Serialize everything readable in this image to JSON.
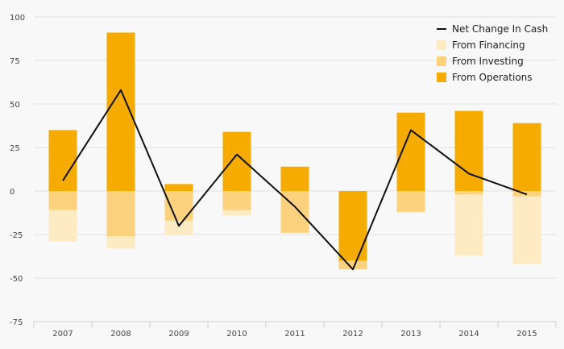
{
  "chart_data": {
    "type": "bar",
    "categories": [
      "2007",
      "2008",
      "2009",
      "2010",
      "2011",
      "2012",
      "2013",
      "2014",
      "2015"
    ],
    "series": [
      {
        "name": "From Operations",
        "kind": "bar",
        "color": "#f5ab00",
        "values": [
          35,
          91,
          4,
          34,
          14,
          -40,
          45,
          46,
          39
        ]
      },
      {
        "name": "From Investing",
        "kind": "bar",
        "color": "#fdd27e",
        "values": [
          -11,
          -26,
          -17,
          -11,
          -24,
          -5,
          -12,
          -2,
          -3
        ]
      },
      {
        "name": "From Financing",
        "kind": "bar",
        "color": "#feeac3",
        "values": [
          -18,
          -7,
          -8,
          -3,
          0,
          0,
          0,
          -35,
          -39
        ]
      },
      {
        "name": "Net Change In Cash",
        "kind": "line",
        "color": "#111111",
        "values": [
          6,
          58,
          -20,
          21,
          -9,
          -45,
          35,
          10,
          -2
        ]
      }
    ],
    "y_ticks": [
      100,
      75,
      50,
      25,
      0,
      -25,
      -50,
      -75
    ],
    "y_tick_labels": [
      "100",
      "75",
      "50",
      "25",
      "0",
      "-25",
      "-50",
      "-75"
    ],
    "ylim": [
      -75,
      100
    ],
    "grid": true,
    "legend_position": "top-right",
    "legend": [
      {
        "label": "Net Change In Cash",
        "kind": "line",
        "color": "#111111"
      },
      {
        "label": "From Financing",
        "kind": "swatch",
        "color": "#feeac3"
      },
      {
        "label": "From Investing",
        "kind": "swatch",
        "color": "#fdd27e"
      },
      {
        "label": "From Operations",
        "kind": "swatch",
        "color": "#f5ab00"
      }
    ]
  }
}
